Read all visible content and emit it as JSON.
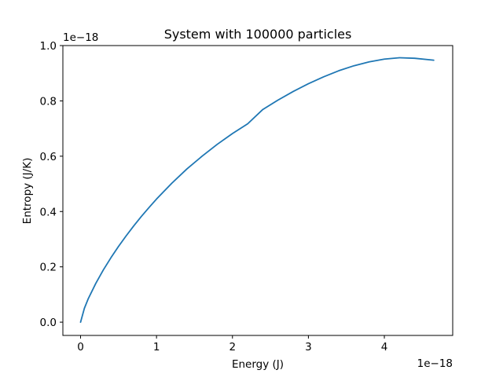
{
  "chart_data": {
    "type": "line",
    "title": "System with 100000 particles",
    "xlabel": "Energy (J)",
    "ylabel": "Entropy (J/K)",
    "x_offset_text": "1e−18",
    "y_offset_text": "1e−18",
    "xlim": [
      -0.233,
      4.9
    ],
    "ylim": [
      -0.048,
      1.0
    ],
    "x_ticks": [
      0,
      1,
      2,
      3,
      4
    ],
    "x_tick_labels": [
      "0",
      "1",
      "2",
      "3",
      "4"
    ],
    "y_ticks": [
      0.0,
      0.2,
      0.4,
      0.6,
      0.8,
      1.0
    ],
    "y_tick_labels": [
      "0.0",
      "0.2",
      "0.4",
      "0.6",
      "0.8",
      "1.0"
    ],
    "grid": false,
    "colors": {
      "line": "#1f77b4",
      "axes": "#000000",
      "background": "#ffffff"
    },
    "series": [
      {
        "x": [
          0,
          0.05,
          0.1,
          0.2,
          0.3,
          0.4,
          0.5,
          0.6,
          0.7,
          0.8,
          0.9,
          1.0,
          1.2,
          1.4,
          1.6,
          1.8,
          2.0,
          2.2,
          2.4,
          2.6,
          2.8,
          3.0,
          3.2,
          3.4,
          3.6,
          3.8,
          4.0,
          4.2,
          4.4,
          4.65
        ],
        "y": [
          0.0,
          0.05,
          0.084,
          0.14,
          0.189,
          0.233,
          0.274,
          0.312,
          0.348,
          0.382,
          0.414,
          0.445,
          0.502,
          0.554,
          0.6,
          0.643,
          0.682,
          0.717,
          0.769,
          0.803,
          0.834,
          0.862,
          0.887,
          0.909,
          0.927,
          0.941,
          0.951,
          0.956,
          0.954,
          0.947
        ]
      }
    ]
  }
}
